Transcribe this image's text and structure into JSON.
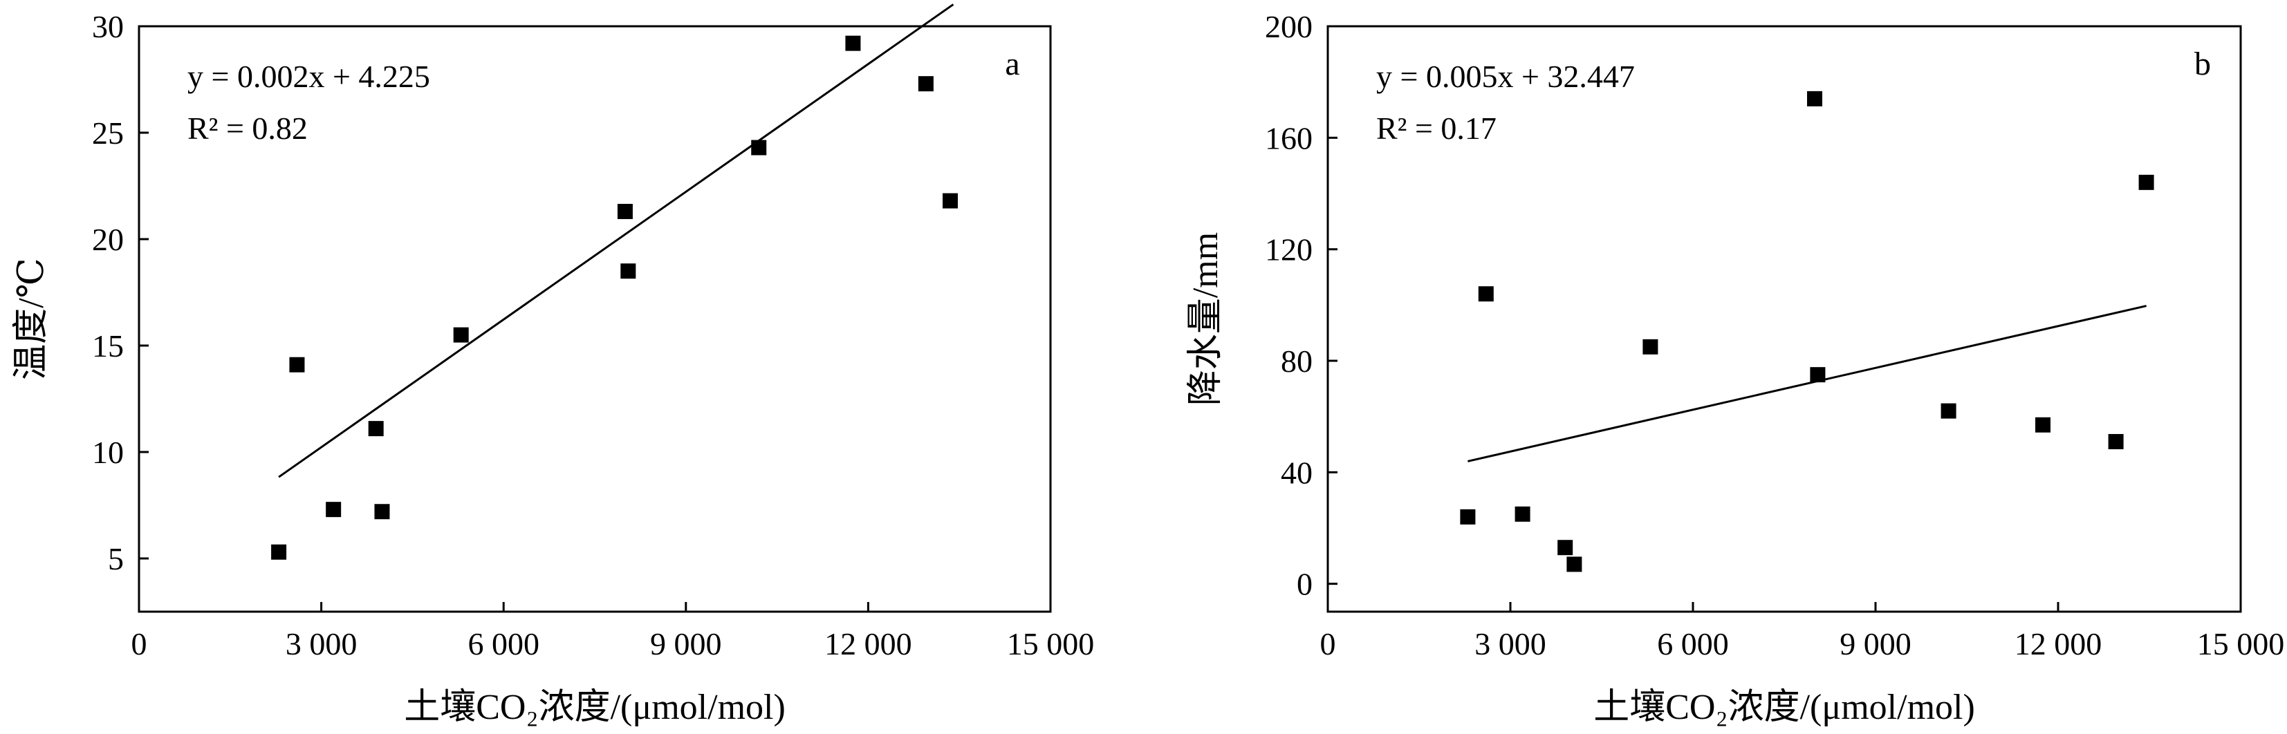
{
  "chart_data": [
    {
      "type": "scatter",
      "panel_label": "a",
      "xlabel": "土壤CO₂浓度/(μmol/mol)",
      "ylabel": "温度/℃",
      "xlim": [
        0,
        15000
      ],
      "ylim": [
        2.5,
        30
      ],
      "x_ticks": [
        0,
        3000,
        6000,
        9000,
        12000,
        15000
      ],
      "x_tick_labels": [
        "0",
        "3 000",
        "6 000",
        "9 000",
        "12 000",
        "15 000"
      ],
      "y_ticks": [
        5,
        10,
        15,
        20,
        25,
        30
      ],
      "y_tick_labels": [
        "5",
        "10",
        "15",
        "20",
        "25",
        "30"
      ],
      "equation": "y = 0.002x + 4.225",
      "r2": "R² = 0.82",
      "fit": {
        "slope": 0.002,
        "intercept": 4.225,
        "x_range": [
          2300,
          13400
        ]
      },
      "points": [
        {
          "x": 2300,
          "y": 5.3
        },
        {
          "x": 2600,
          "y": 14.1
        },
        {
          "x": 3200,
          "y": 7.3
        },
        {
          "x": 3900,
          "y": 11.1
        },
        {
          "x": 4000,
          "y": 7.2
        },
        {
          "x": 5300,
          "y": 15.5
        },
        {
          "x": 8000,
          "y": 21.3
        },
        {
          "x": 8050,
          "y": 18.5
        },
        {
          "x": 10200,
          "y": 24.3
        },
        {
          "x": 11750,
          "y": 29.2
        },
        {
          "x": 12950,
          "y": 27.3
        },
        {
          "x": 13350,
          "y": 21.8
        }
      ]
    },
    {
      "type": "scatter",
      "panel_label": "b",
      "xlabel": "土壤CO₂浓度/(μmol/mol)",
      "ylabel": "降水量/mm",
      "xlim": [
        0,
        15000
      ],
      "ylim": [
        -10,
        200
      ],
      "x_ticks": [
        0,
        3000,
        6000,
        9000,
        12000,
        15000
      ],
      "x_tick_labels": [
        "0",
        "3 000",
        "6 000",
        "9 000",
        "12 000",
        "15 000"
      ],
      "y_ticks": [
        0,
        40,
        80,
        120,
        160,
        200
      ],
      "y_tick_labels": [
        "0",
        "40",
        "80",
        "120",
        "160",
        "200"
      ],
      "equation": "y = 0.005x + 32.447",
      "r2": "R² = 0.17",
      "fit": {
        "slope": 0.005,
        "intercept": 32.447,
        "x_range": [
          2300,
          13450
        ]
      },
      "points": [
        {
          "x": 2300,
          "y": 24
        },
        {
          "x": 2600,
          "y": 104
        },
        {
          "x": 3200,
          "y": 25
        },
        {
          "x": 3900,
          "y": 13
        },
        {
          "x": 4050,
          "y": 7
        },
        {
          "x": 5300,
          "y": 85
        },
        {
          "x": 8000,
          "y": 174
        },
        {
          "x": 8050,
          "y": 75
        },
        {
          "x": 10200,
          "y": 62
        },
        {
          "x": 11750,
          "y": 57
        },
        {
          "x": 12950,
          "y": 51
        },
        {
          "x": 13450,
          "y": 144
        }
      ]
    }
  ]
}
